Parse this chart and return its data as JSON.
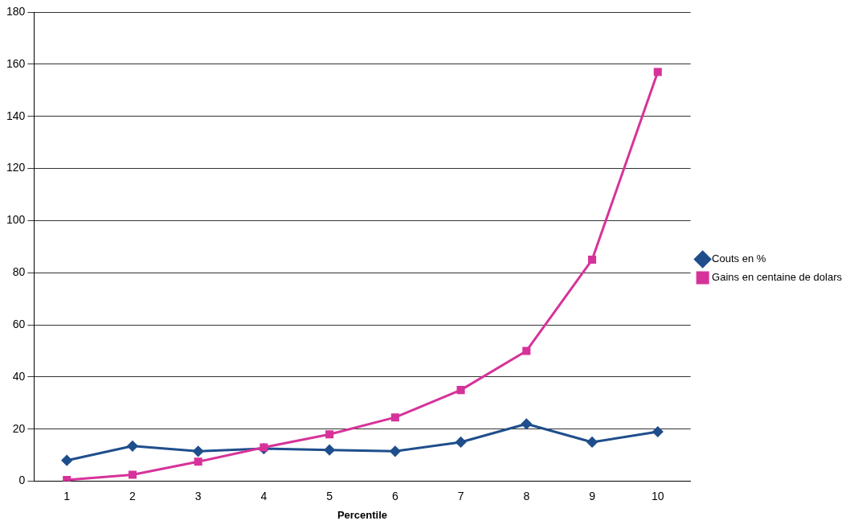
{
  "chart_data": {
    "type": "line",
    "xlabel": "Percentile",
    "categories": [
      "1",
      "2",
      "3",
      "4",
      "5",
      "6",
      "7",
      "8",
      "9",
      "10"
    ],
    "series": [
      {
        "name": "Couts en %",
        "color": "#1f4e8c",
        "marker": "diamond",
        "values": [
          8,
          13.5,
          11.5,
          12.5,
          12,
          11.5,
          15,
          22,
          15,
          19
        ]
      },
      {
        "name": "Gains en centaine de dolars",
        "color": "#d6339a",
        "marker": "square",
        "values": [
          0.5,
          2.5,
          7.5,
          13,
          18,
          24.5,
          35,
          50,
          85,
          157
        ]
      }
    ],
    "ylim": [
      0,
      180
    ],
    "yticks": [
      0,
      20,
      40,
      60,
      80,
      100,
      120,
      140,
      160,
      180
    ],
    "grid": "y",
    "legend": "right"
  }
}
